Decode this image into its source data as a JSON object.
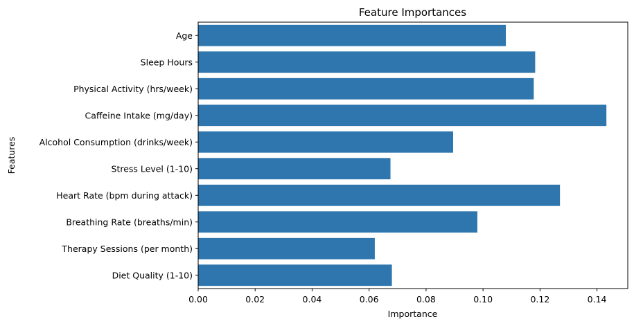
{
  "chart_data": {
    "type": "bar",
    "orientation": "horizontal",
    "title": "Feature Importances",
    "xlabel": "Importance",
    "ylabel": "Features",
    "categories": [
      "Age",
      "Sleep Hours",
      "Physical Activity (hrs/week)",
      "Caffeine Intake (mg/day)",
      "Alcohol Consumption (drinks/week)",
      "Stress Level (1-10)",
      "Heart Rate (bpm during attack)",
      "Breathing Rate (breaths/min)",
      "Therapy Sessions (per month)",
      "Diet Quality (1-10)"
    ],
    "values": [
      0.108,
      0.1183,
      0.1178,
      0.1433,
      0.0895,
      0.0675,
      0.127,
      0.098,
      0.062,
      0.068
    ],
    "xlim": [
      0,
      0.1508
    ],
    "xticks": [
      0.0,
      0.02,
      0.04,
      0.06,
      0.08,
      0.1,
      0.12,
      0.14
    ],
    "xtick_labels": [
      "0.00",
      "0.02",
      "0.04",
      "0.06",
      "0.08",
      "0.10",
      "0.12",
      "0.14"
    ],
    "grid": false,
    "bar_color": "#2e76ad"
  }
}
